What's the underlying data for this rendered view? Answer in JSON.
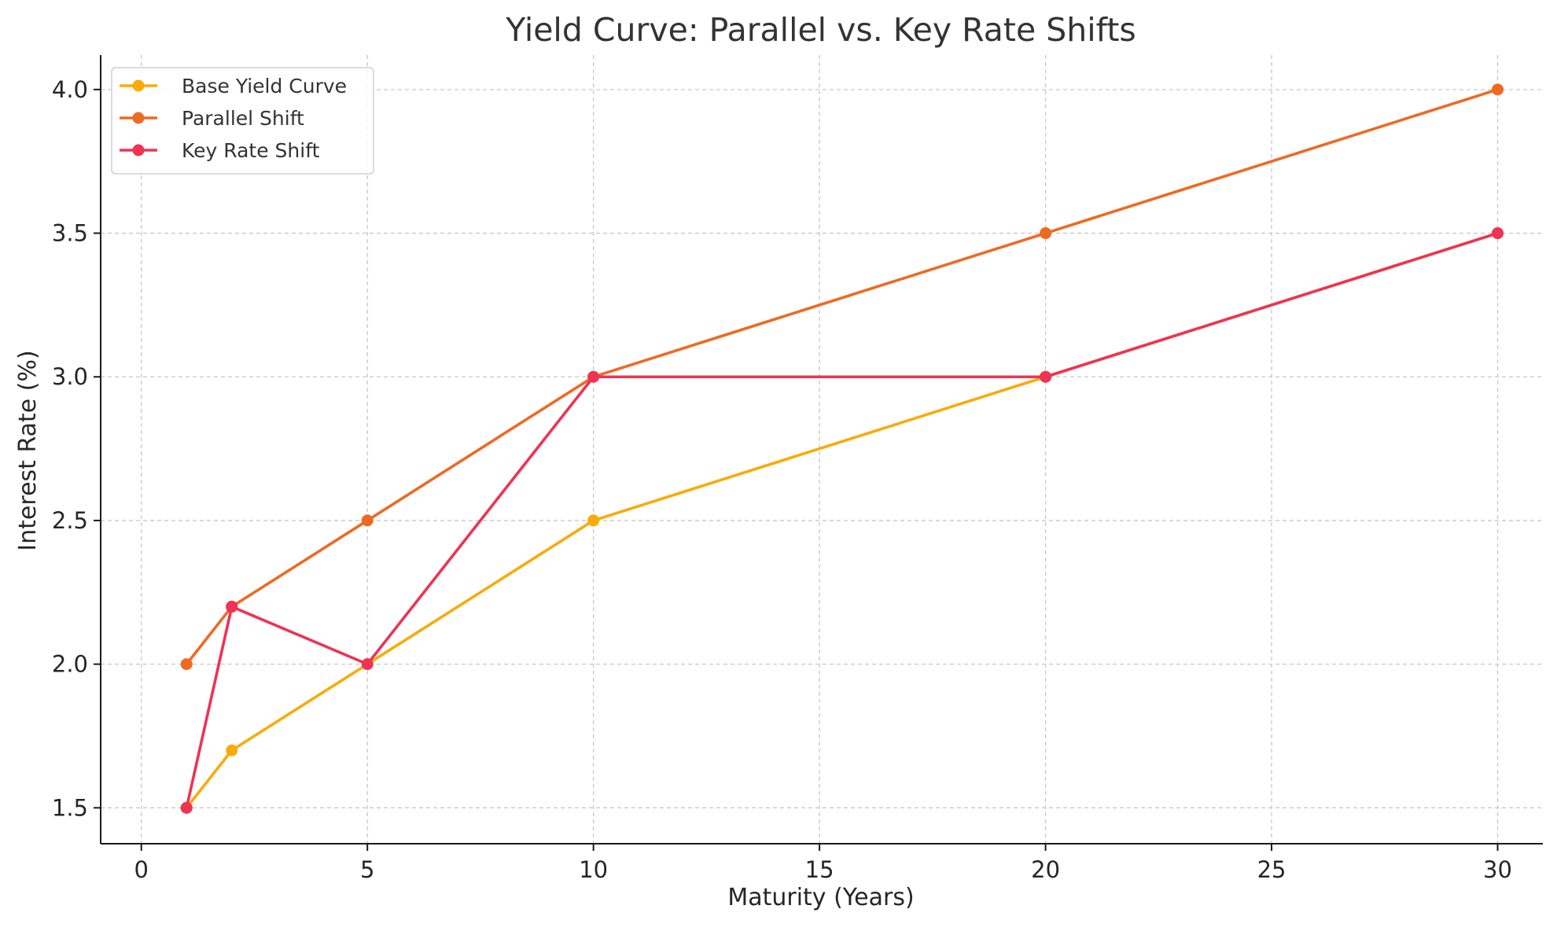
{
  "chart_data": {
    "type": "line",
    "title": "Yield Curve: Parallel vs. Key Rate Shifts",
    "xlabel": "Maturity (Years)",
    "ylabel": "Interest Rate (%)",
    "xlim": [
      -0.9,
      31.0
    ],
    "ylim": [
      1.375,
      4.12
    ],
    "xticks": [
      0,
      5,
      10,
      15,
      20,
      25,
      30
    ],
    "yticks": [
      1.5,
      2.0,
      2.5,
      3.0,
      3.5,
      4.0
    ],
    "xtick_labels": [
      "0",
      "5",
      "10",
      "15",
      "20",
      "25",
      "30"
    ],
    "ytick_labels": [
      "1.5",
      "2.0",
      "2.5",
      "3.0",
      "3.5",
      "4.0"
    ],
    "grid": true,
    "legend_position": "top-left",
    "x": [
      1,
      2,
      5,
      10,
      20,
      30
    ],
    "series": [
      {
        "name": "Base Yield Curve",
        "color": "#f9ab0a",
        "values": [
          1.5,
          1.7,
          2.0,
          2.5,
          3.0,
          3.5
        ]
      },
      {
        "name": "Parallel Shift",
        "color": "#ee6a23",
        "values": [
          2.0,
          2.2,
          2.5,
          3.0,
          3.5,
          4.0
        ]
      },
      {
        "name": "Key Rate Shift",
        "color": "#ee3354",
        "values": [
          1.5,
          2.2,
          2.0,
          3.0,
          3.0,
          3.5
        ]
      }
    ]
  }
}
